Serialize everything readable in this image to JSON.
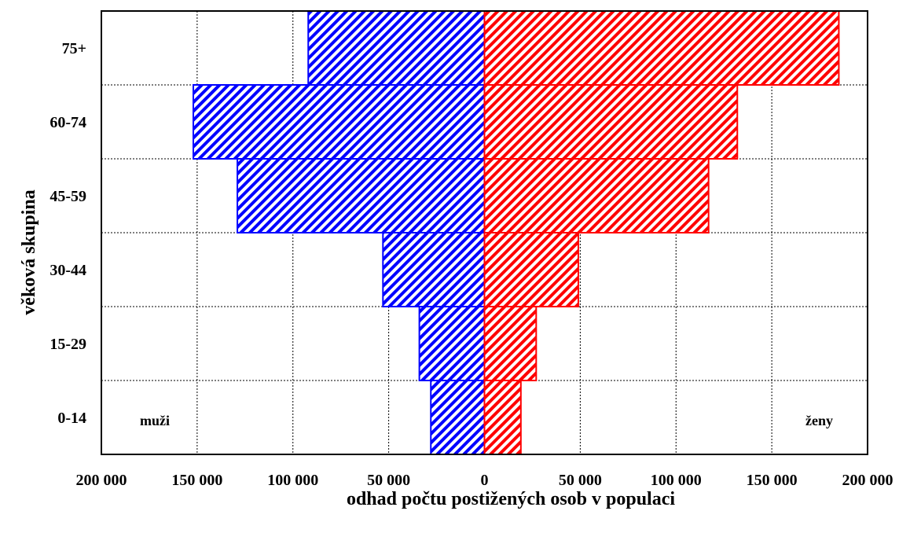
{
  "chart_data": {
    "type": "bar",
    "orientation": "horizontal",
    "layout": "population-pyramid",
    "categories": [
      "0-14",
      "15-29",
      "30-44",
      "45-59",
      "60-74",
      "75+"
    ],
    "series": [
      {
        "name": "muži",
        "side": "left",
        "color": "#0000ff",
        "values": [
          28000,
          34000,
          53000,
          129000,
          152000,
          92000
        ]
      },
      {
        "name": "ženy",
        "side": "right",
        "color": "#ff0000",
        "values": [
          19000,
          27000,
          49000,
          117000,
          132000,
          185000
        ]
      }
    ],
    "xlabel": "odhad počtu postižených osob v populaci",
    "ylabel": "věková skupina",
    "xlim": [
      -200000,
      200000
    ],
    "x_ticks": [
      -200000,
      -150000,
      -100000,
      -50000,
      0,
      50000,
      100000,
      150000,
      200000
    ],
    "x_tick_labels": [
      "200 000",
      "150 000",
      "100 000",
      "50 000",
      "0",
      "50 000",
      "100 000",
      "150 000",
      "200 000"
    ],
    "grid": true,
    "fill_pattern": "diagonal-hatch",
    "side_labels": {
      "left": "muži",
      "right": "ženy"
    }
  }
}
